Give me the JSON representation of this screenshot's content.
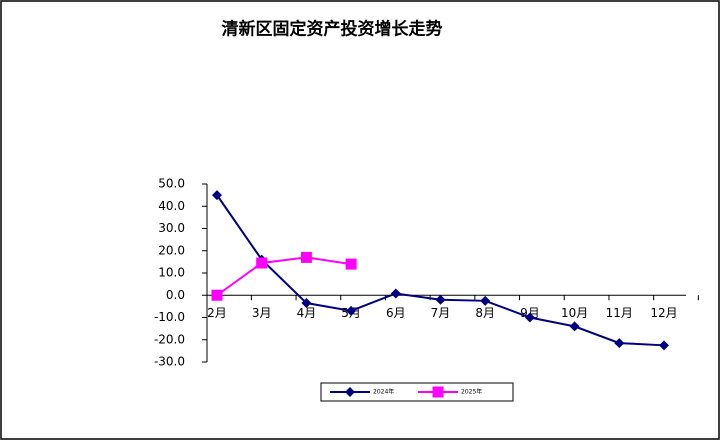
{
  "chart_data": {
    "type": "line",
    "title": "清新区固定资产投资增长走势",
    "categories": [
      "2月",
      "3月",
      "4月",
      "5月",
      "6月",
      "7月",
      "8月",
      "9月",
      "10月",
      "11月",
      "12月"
    ],
    "series": [
      {
        "name": "2024年",
        "color": "#000080",
        "marker": "diamond",
        "values": [
          45,
          16,
          -3.5,
          -7,
          0.8,
          -2,
          -2.5,
          -10,
          -14,
          -21.5,
          -22.5
        ]
      },
      {
        "name": "2025年",
        "color": "#ff00ff",
        "marker": "square",
        "values": [
          0,
          14.5,
          17,
          14,
          null,
          null,
          null,
          null,
          null,
          null,
          null
        ]
      }
    ],
    "ylim": [
      -30,
      50
    ],
    "yticks": [
      {
        "value": -30,
        "label": "-30.0"
      },
      {
        "value": -20,
        "label": "-20.0"
      },
      {
        "value": -10,
        "label": "-10.0"
      },
      {
        "value": 0,
        "label": "0.0"
      },
      {
        "value": 10,
        "label": "10.0"
      },
      {
        "value": 20,
        "label": "20.0"
      },
      {
        "value": 30,
        "label": "30.0"
      },
      {
        "value": 40,
        "label": "40.0"
      },
      {
        "value": 50,
        "label": "50.0"
      }
    ],
    "legend": "bottom"
  }
}
